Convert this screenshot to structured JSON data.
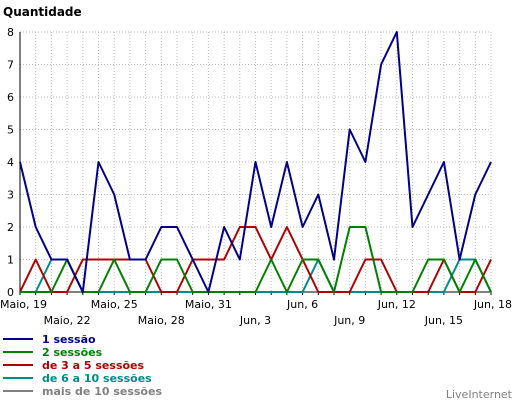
{
  "chart_data": {
    "type": "line",
    "ylabel": "Quantidade",
    "ylim": [
      0,
      8
    ],
    "yticks": [
      "0",
      "1",
      "2",
      "3",
      "4",
      "5",
      "6",
      "7",
      "8"
    ],
    "x_tick_labels": [
      "Maio, 19",
      "Maio, 22",
      "Maio, 25",
      "Maio, 28",
      "Maio, 31",
      "Jun, 3",
      "Jun, 6",
      "Jun, 9",
      "Jun, 12",
      "Jun, 15",
      "Jun, 18"
    ],
    "grid": true,
    "legend_position": "bottom-left",
    "x": [
      "Maio, 19",
      "Maio, 20",
      "Maio, 21",
      "Maio, 22",
      "Maio, 23",
      "Maio, 24",
      "Maio, 25",
      "Maio, 26",
      "Maio, 27",
      "Maio, 28",
      "Maio, 29",
      "Maio, 30",
      "Maio, 31",
      "Jun, 1",
      "Jun, 2",
      "Jun, 3",
      "Jun, 4",
      "Jun, 5",
      "Jun, 6",
      "Jun, 7",
      "Jun, 8",
      "Jun, 9",
      "Jun, 10",
      "Jun, 11",
      "Jun, 12",
      "Jun, 13",
      "Jun, 14",
      "Jun, 15",
      "Jun, 16",
      "Jun, 17",
      "Jun, 18"
    ],
    "series": [
      {
        "name": "1 sessão",
        "color": "#00008b",
        "values": [
          4,
          2,
          1,
          1,
          0,
          4,
          3,
          1,
          1,
          2,
          2,
          1,
          0,
          2,
          1,
          4,
          2,
          4,
          2,
          3,
          1,
          5,
          4,
          7,
          8,
          2,
          3,
          4,
          1,
          3,
          4
        ]
      },
      {
        "name": "2 sessões",
        "color": "#008000",
        "values": [
          0,
          0,
          0,
          1,
          0,
          0,
          1,
          0,
          0,
          1,
          1,
          0,
          0,
          0,
          0,
          0,
          1,
          0,
          1,
          1,
          0,
          2,
          2,
          0,
          0,
          0,
          1,
          1,
          0,
          1,
          0
        ]
      },
      {
        "name": "de 3 a 5 sessões",
        "color": "#b00000",
        "values": [
          0,
          1,
          0,
          0,
          1,
          1,
          1,
          1,
          1,
          0,
          0,
          1,
          1,
          1,
          2,
          2,
          1,
          2,
          1,
          0,
          0,
          0,
          1,
          1,
          0,
          0,
          0,
          1,
          0,
          0,
          1
        ]
      },
      {
        "name": "de 6 a 10 sessões",
        "color": "#008b8b",
        "values": [
          0,
          0,
          1,
          1,
          0,
          0,
          0,
          0,
          0,
          0,
          0,
          0,
          0,
          0,
          0,
          0,
          0,
          0,
          0,
          1,
          0,
          0,
          0,
          0,
          0,
          0,
          0,
          0,
          1,
          1,
          0
        ]
      },
      {
        "name": "mais de 10 sessões",
        "color": "#808080",
        "values": [
          0,
          0,
          0,
          0,
          0,
          0,
          0,
          0,
          0,
          0,
          0,
          0,
          0,
          0,
          0,
          0,
          0,
          0,
          0,
          0,
          0,
          0,
          0,
          0,
          0,
          0,
          0,
          0,
          0,
          0,
          0
        ]
      }
    ]
  },
  "brand": "LiveInternet"
}
